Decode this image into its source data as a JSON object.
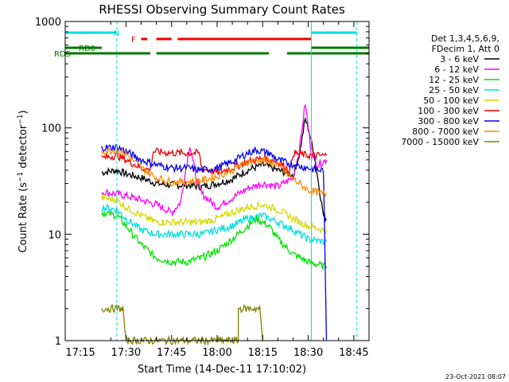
{
  "chart_data": {
    "type": "line",
    "title": "RHESSI Observing Summary Count Rates",
    "xlabel": "Start Time (14-Dec-11 17:10:02)",
    "ylabel": "Count Rate (s⁻¹ detector⁻¹)",
    "ylabel_parts": {
      "main": "Count Rate (s",
      "sup1": "−1",
      "mid": " detector",
      "sup2": "−1",
      "end": ")"
    },
    "y_scale": "log",
    "ylim": [
      1,
      1000
    ],
    "xlim": [
      "17:10",
      "18:50"
    ],
    "x_ticks": [
      "17:15",
      "17:30",
      "17:45",
      "18:00",
      "18:15",
      "18:30",
      "18:45"
    ],
    "y_ticks": [
      "1",
      "10",
      "100",
      "1000"
    ],
    "grid": false,
    "timestamp": "23-Oct-2021 08:07",
    "legend": {
      "placement": "right",
      "header": [
        "Det 1,3,4,5,6,9,",
        "FDecim 1, Att 0"
      ],
      "entries": [
        {
          "name": "3 - 6 keV",
          "color": "#000000"
        },
        {
          "name": "6 - 12 keV",
          "color": "#ff00ff"
        },
        {
          "name": "12 - 25 keV",
          "color": "#00e000"
        },
        {
          "name": "25 - 50 keV",
          "color": "#00e0e0"
        },
        {
          "name": "50 - 100 keV",
          "color": "#d8d800"
        },
        {
          "name": "100 - 300 keV",
          "color": "#ee0000"
        },
        {
          "name": "300 - 800 keV",
          "color": "#0000ee"
        },
        {
          "name": "800 - 7000 keV",
          "color": "#ff8800"
        },
        {
          "name": "7000 - 15000 keV",
          "color": "#808000"
        }
      ]
    },
    "flags": [
      {
        "label": "N",
        "color": "#00dddd",
        "segments": [
          [
            "17:10",
            "17:27"
          ],
          [
            "18:31",
            "18:46"
          ]
        ]
      },
      {
        "label": "F",
        "color": "#ee0000",
        "segments": [
          [
            "17:35",
            "17:37"
          ],
          [
            "17:40",
            "17:45"
          ],
          [
            "17:47",
            "18:31"
          ]
        ]
      },
      {
        "label": "RD0",
        "color": "#007700",
        "segments": [
          [
            "17:10",
            "17:22"
          ],
          [
            "18:31",
            "18:50"
          ]
        ]
      },
      {
        "label": "RDS",
        "color": "#007700",
        "segments": [
          [
            "17:10",
            "17:38"
          ],
          [
            "17:40",
            "18:00"
          ],
          [
            "18:00",
            "18:17"
          ],
          [
            "18:23",
            "18:50"
          ]
        ]
      }
    ],
    "vertical_markers": [
      {
        "time": "17:10",
        "color": "#00dddd",
        "style": "solid"
      },
      {
        "time": "17:27",
        "color": "#00dddd",
        "style": "dashed"
      },
      {
        "time": "18:31",
        "color": "#00dddd",
        "style": "solid"
      },
      {
        "time": "18:46",
        "color": "#00dddd",
        "style": "dashed"
      }
    ],
    "data_span": [
      "17:22",
      "18:36"
    ],
    "series": [
      {
        "name": "3 - 6 keV",
        "color": "#000000",
        "points": [
          [
            "17:22",
            38
          ],
          [
            "17:27",
            40
          ],
          [
            "17:30",
            37
          ],
          [
            "17:35",
            34
          ],
          [
            "17:40",
            30
          ],
          [
            "17:45",
            29
          ],
          [
            "17:50",
            29
          ],
          [
            "17:55",
            28
          ],
          [
            "18:00",
            30
          ],
          [
            "18:05",
            33
          ],
          [
            "18:10",
            40
          ],
          [
            "18:15",
            45
          ],
          [
            "18:20",
            40
          ],
          [
            "18:25",
            36
          ],
          [
            "18:27",
            55
          ],
          [
            "18:29",
            120
          ],
          [
            "18:30",
            100
          ],
          [
            "18:32",
            55
          ],
          [
            "18:35",
            15
          ],
          [
            "18:36",
            14
          ]
        ]
      },
      {
        "name": "6 - 12 keV",
        "color": "#ff00ff",
        "points": [
          [
            "17:22",
            25
          ],
          [
            "17:27",
            24
          ],
          [
            "17:30",
            23
          ],
          [
            "17:35",
            21
          ],
          [
            "17:40",
            19
          ],
          [
            "17:45",
            16
          ],
          [
            "17:48",
            20
          ],
          [
            "17:51",
            70
          ],
          [
            "17:53",
            35
          ],
          [
            "17:55",
            24
          ],
          [
            "18:00",
            18
          ],
          [
            "18:05",
            22
          ],
          [
            "18:10",
            27
          ],
          [
            "18:15",
            30
          ],
          [
            "18:20",
            28
          ],
          [
            "18:25",
            34
          ],
          [
            "18:27",
            60
          ],
          [
            "18:29",
            170
          ],
          [
            "18:31",
            60
          ],
          [
            "18:33",
            45
          ],
          [
            "18:36",
            50
          ]
        ]
      },
      {
        "name": "12 - 25 keV",
        "color": "#00e000",
        "points": [
          [
            "17:22",
            16
          ],
          [
            "17:27",
            15
          ],
          [
            "17:30",
            12
          ],
          [
            "17:35",
            8
          ],
          [
            "17:40",
            6
          ],
          [
            "17:45",
            5.5
          ],
          [
            "17:50",
            5.5
          ],
          [
            "17:55",
            6
          ],
          [
            "18:00",
            7
          ],
          [
            "18:05",
            9
          ],
          [
            "18:10",
            12
          ],
          [
            "18:13",
            14
          ],
          [
            "18:17",
            12
          ],
          [
            "18:20",
            9
          ],
          [
            "18:25",
            6.5
          ],
          [
            "18:30",
            5.5
          ],
          [
            "18:35",
            5
          ],
          [
            "18:36",
            5
          ]
        ]
      },
      {
        "name": "25 - 50 keV",
        "color": "#00e0e0",
        "points": [
          [
            "17:22",
            18
          ],
          [
            "17:27",
            17
          ],
          [
            "17:30",
            14
          ],
          [
            "17:35",
            11
          ],
          [
            "17:40",
            10
          ],
          [
            "17:45",
            10
          ],
          [
            "17:50",
            10
          ],
          [
            "17:55",
            10
          ],
          [
            "18:00",
            11
          ],
          [
            "18:05",
            12
          ],
          [
            "18:10",
            14
          ],
          [
            "18:15",
            15
          ],
          [
            "18:20",
            13
          ],
          [
            "18:25",
            11
          ],
          [
            "18:30",
            9
          ],
          [
            "18:35",
            8.5
          ],
          [
            "18:36",
            8.5
          ]
        ]
      },
      {
        "name": "50 - 100 keV",
        "color": "#d8d800",
        "points": [
          [
            "17:22",
            22
          ],
          [
            "17:27",
            21
          ],
          [
            "17:30",
            18
          ],
          [
            "17:35",
            15
          ],
          [
            "17:40",
            13
          ],
          [
            "17:45",
            13
          ],
          [
            "17:50",
            13
          ],
          [
            "17:55",
            13
          ],
          [
            "18:00",
            14
          ],
          [
            "18:05",
            16
          ],
          [
            "18:10",
            18
          ],
          [
            "18:15",
            19
          ],
          [
            "18:20",
            17
          ],
          [
            "18:25",
            14
          ],
          [
            "18:30",
            12
          ],
          [
            "18:35",
            11
          ],
          [
            "18:36",
            11
          ]
        ]
      },
      {
        "name": "100 - 300 keV",
        "color": "#ee0000",
        "points": [
          [
            "17:22",
            52
          ],
          [
            "17:27",
            55
          ],
          [
            "17:30",
            50
          ],
          [
            "17:35",
            42
          ],
          [
            "17:38",
            40
          ],
          [
            "17:39",
            60
          ],
          [
            "17:45",
            58
          ],
          [
            "17:50",
            58
          ],
          [
            "17:54",
            58
          ],
          [
            "17:55",
            42
          ],
          [
            "18:00",
            38
          ],
          [
            "18:05",
            42
          ],
          [
            "18:10",
            48
          ],
          [
            "18:15",
            52
          ],
          [
            "18:20",
            48
          ],
          [
            "18:24",
            40
          ],
          [
            "18:25",
            58
          ],
          [
            "18:30",
            55
          ],
          [
            "18:35",
            55
          ],
          [
            "18:36",
            55
          ]
        ]
      },
      {
        "name": "300 - 800 keV",
        "color": "#0000ee",
        "points": [
          [
            "17:22",
            65
          ],
          [
            "17:27",
            66
          ],
          [
            "17:30",
            60
          ],
          [
            "17:35",
            50
          ],
          [
            "17:40",
            45
          ],
          [
            "17:45",
            42
          ],
          [
            "17:50",
            42
          ],
          [
            "17:55",
            40
          ],
          [
            "18:00",
            42
          ],
          [
            "18:05",
            48
          ],
          [
            "18:10",
            58
          ],
          [
            "18:13",
            62
          ],
          [
            "18:17",
            58
          ],
          [
            "18:20",
            50
          ],
          [
            "18:25",
            45
          ],
          [
            "18:30",
            42
          ],
          [
            "18:33",
            40
          ],
          [
            "18:35",
            40
          ],
          [
            "18:36",
            1
          ]
        ]
      },
      {
        "name": "800 - 7000 keV",
        "color": "#ff8800",
        "points": [
          [
            "17:22",
            60
          ],
          [
            "17:27",
            62
          ],
          [
            "17:30",
            57
          ],
          [
            "17:35",
            42
          ],
          [
            "17:40",
            34
          ],
          [
            "17:45",
            31
          ],
          [
            "17:50",
            31
          ],
          [
            "17:55",
            32
          ],
          [
            "18:00",
            35
          ],
          [
            "18:05",
            40
          ],
          [
            "18:10",
            48
          ],
          [
            "18:15",
            50
          ],
          [
            "18:20",
            45
          ],
          [
            "18:25",
            33
          ],
          [
            "18:30",
            26
          ],
          [
            "18:35",
            24
          ],
          [
            "18:36",
            24
          ]
        ]
      },
      {
        "name": "7000 - 15000 keV",
        "color": "#808000",
        "points": [
          [
            "17:22",
            2
          ],
          [
            "17:29",
            2
          ],
          [
            "17:30",
            1
          ],
          [
            "18:07",
            1
          ],
          [
            "18:07",
            2
          ],
          [
            "18:14",
            2
          ],
          [
            "18:15",
            1
          ]
        ]
      }
    ]
  }
}
